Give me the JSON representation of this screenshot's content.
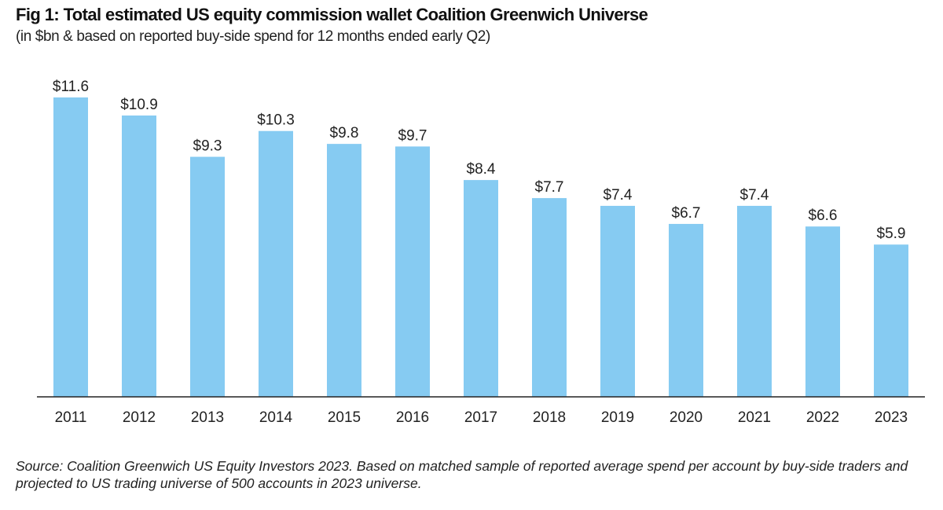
{
  "title": "Fig 1: Total estimated US equity commission wallet Coalition Greenwich Universe",
  "subtitle": "(in $bn & based on reported buy-side spend for 12 months ended early Q2)",
  "source": "Source: Coalition Greenwich US Equity Investors 2023. Based on matched sample of reported average spend per account by buy-side traders and projected to US trading universe of 500 accounts in 2023 universe.",
  "colors": {
    "bar": "#86CBF2",
    "axis": "#222222"
  },
  "chart_data": {
    "type": "bar",
    "categories": [
      "2011",
      "2012",
      "2013",
      "2014",
      "2015",
      "2016",
      "2017",
      "2018",
      "2019",
      "2020",
      "2021",
      "2022",
      "2023"
    ],
    "values": [
      11.6,
      10.9,
      9.3,
      10.3,
      9.8,
      9.7,
      8.4,
      7.7,
      7.4,
      6.7,
      7.4,
      6.6,
      5.9
    ],
    "data_labels": [
      "$11.6",
      "$10.9",
      "$9.3",
      "$10.3",
      "$9.8",
      "$9.7",
      "$8.4",
      "$7.7",
      "$7.4",
      "$6.7",
      "$7.4",
      "$6.6",
      "$5.9"
    ],
    "title": "Fig 1: Total estimated US equity commission wallet Coalition Greenwich Universe",
    "xlabel": "",
    "ylabel": "",
    "ylim": [
      0,
      11.6
    ],
    "grid": false,
    "legend": "none"
  }
}
